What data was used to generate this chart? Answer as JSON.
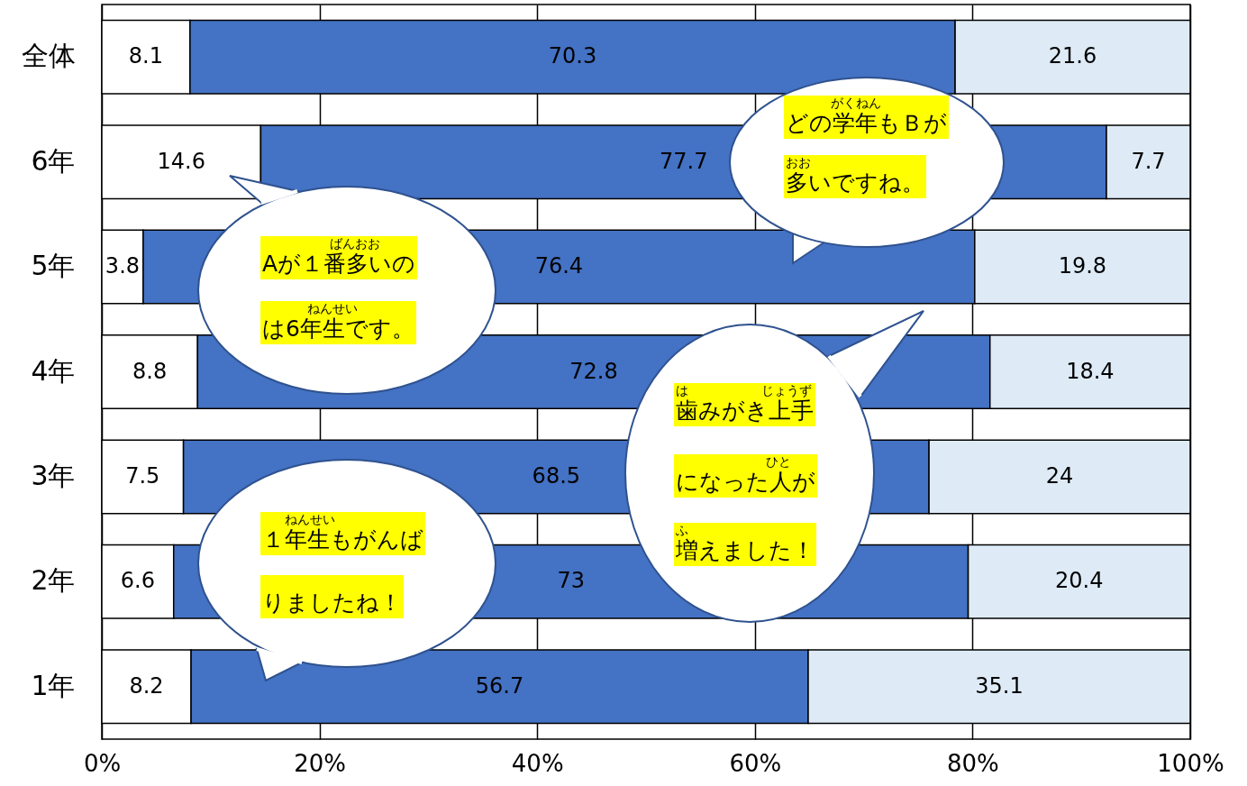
{
  "chart_data": {
    "type": "bar",
    "orientation": "horizontal",
    "stacked": true,
    "data_labels": true,
    "grid": "x",
    "categories": [
      "全体",
      "6年",
      "5年",
      "4年",
      "3年",
      "2年",
      "1年"
    ],
    "series": [
      {
        "color": "#ffffff",
        "values": [
          8.1,
          14.6,
          3.8,
          8.8,
          7.5,
          6.6,
          8.2
        ]
      },
      {
        "color": "#4472c4",
        "values": [
          70.3,
          77.7,
          76.4,
          72.8,
          68.5,
          73,
          56.7
        ]
      },
      {
        "color": "#deebf7",
        "values": [
          21.6,
          7.7,
          19.8,
          18.4,
          24,
          20.4,
          35.1
        ]
      }
    ],
    "xlim": [
      0,
      100
    ],
    "xticks": [
      {
        "value": 0,
        "label": "0%"
      },
      {
        "value": 20,
        "label": "20%"
      },
      {
        "value": 40,
        "label": "40%"
      },
      {
        "value": 60,
        "label": "60%"
      },
      {
        "value": 80,
        "label": "80%"
      },
      {
        "value": 100,
        "label": "100%"
      }
    ],
    "annotations": [
      "どの学年もＢが",
      "がくねん",
      "多いですね。",
      "おお",
      "Aが１番多いの",
      "ばんおお",
      "は6年生です。",
      "ねんせい",
      "歯みがき上手",
      "は",
      "じょうず",
      "になった人が",
      "ひと",
      "増えました！",
      "ふ",
      "１年生もがんば",
      "ねんせい",
      "りましたね！"
    ]
  }
}
